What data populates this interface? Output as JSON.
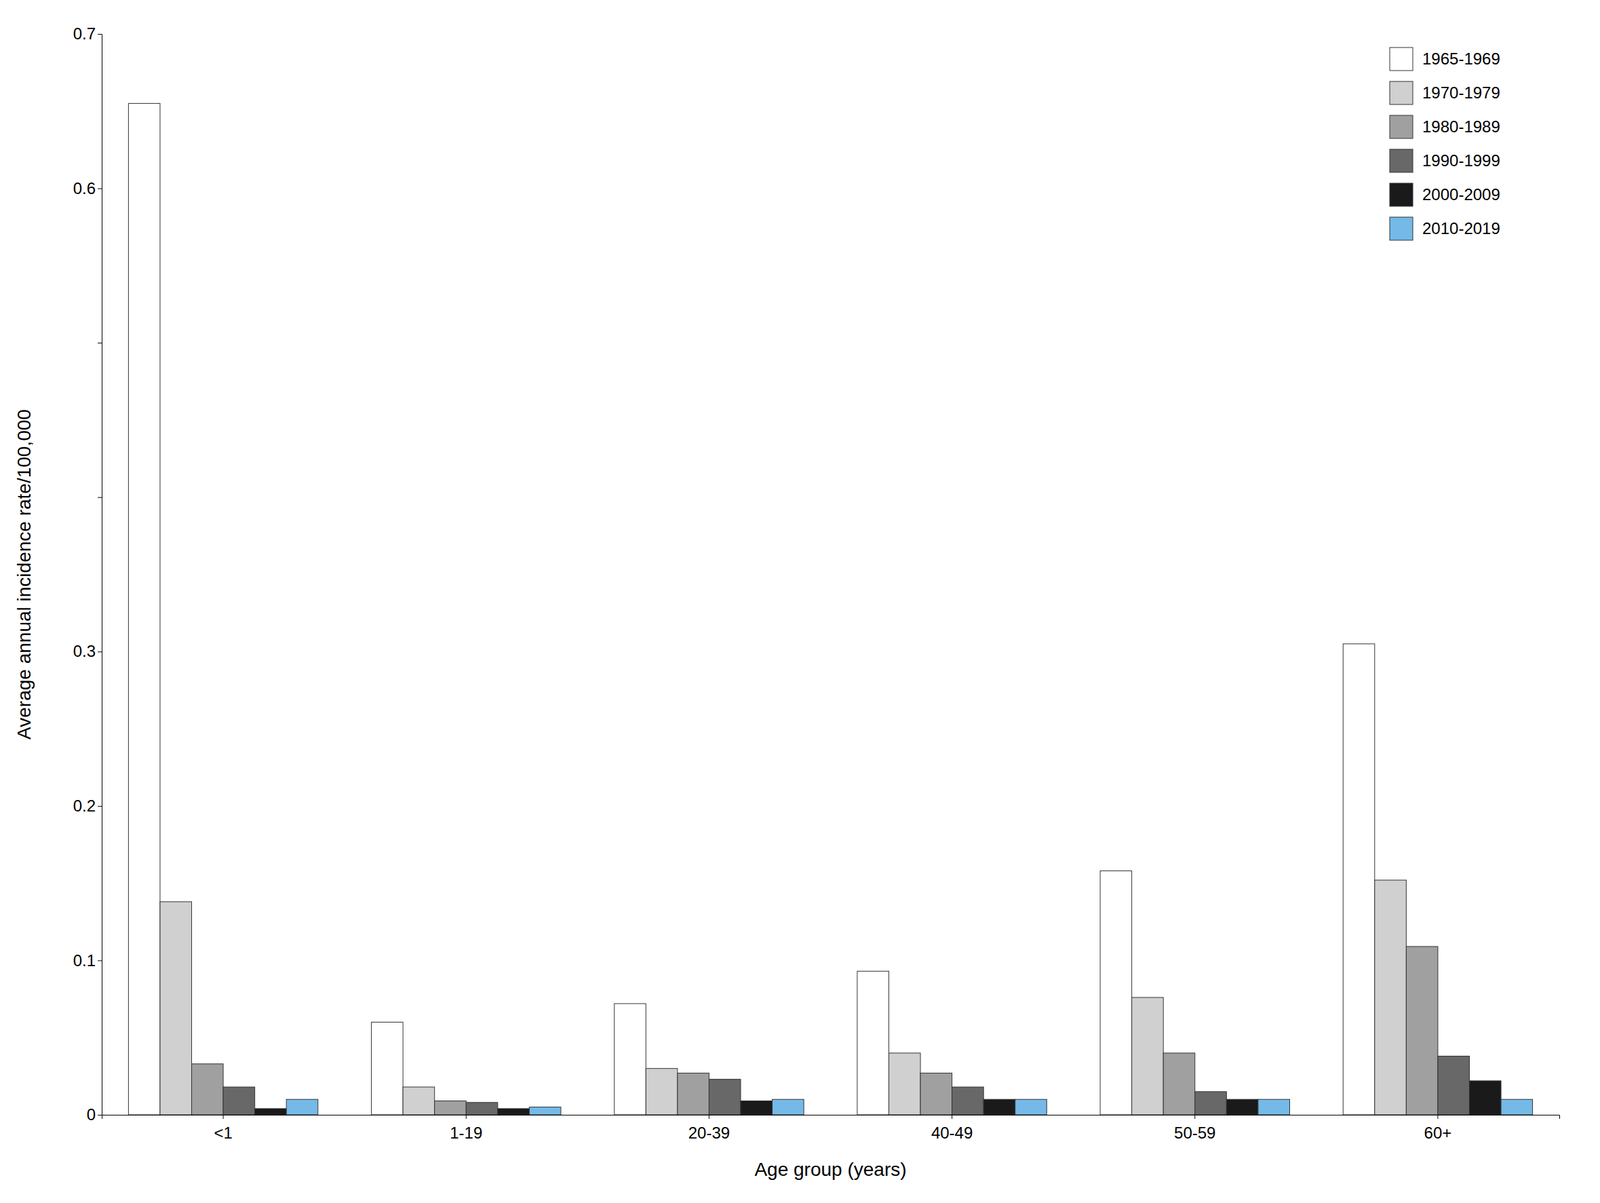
{
  "chart_data": {
    "type": "bar",
    "xlabel": "Age group (years)",
    "ylabel": "Average annual incidence rate/100,000",
    "categories": [
      "<1",
      "1-19",
      "20-39",
      "40-49",
      "50-59",
      "60+"
    ],
    "series": [
      {
        "name": "1965-1969",
        "color": "#ffffff",
        "values": [
          0.655,
          0.06,
          0.072,
          0.093,
          0.158,
          0.305
        ]
      },
      {
        "name": "1970-1979",
        "color": "#d0d0d0",
        "values": [
          0.138,
          0.018,
          0.03,
          0.04,
          0.076,
          0.152
        ]
      },
      {
        "name": "1980-1989",
        "color": "#a0a0a0",
        "values": [
          0.033,
          0.009,
          0.027,
          0.027,
          0.04,
          0.109
        ]
      },
      {
        "name": "1990-1999",
        "color": "#686868",
        "values": [
          0.018,
          0.008,
          0.023,
          0.018,
          0.015,
          0.038
        ]
      },
      {
        "name": "2000-2009",
        "color": "#1a1a1a",
        "values": [
          0.004,
          0.004,
          0.009,
          0.01,
          0.01,
          0.022
        ]
      },
      {
        "name": "2010-2019",
        "color": "#74b9e8",
        "values": [
          0.01,
          0.005,
          0.01,
          0.01,
          0.01,
          0.01
        ]
      }
    ],
    "ylim": [
      0,
      0.7
    ],
    "yticks": [
      0,
      0.1,
      0.2,
      0.3,
      {
        "value": 0.4,
        "label": ""
      },
      {
        "value": 0.5,
        "label": ""
      },
      0.6,
      0.7
    ],
    "grid": false,
    "legend": "upper right"
  }
}
